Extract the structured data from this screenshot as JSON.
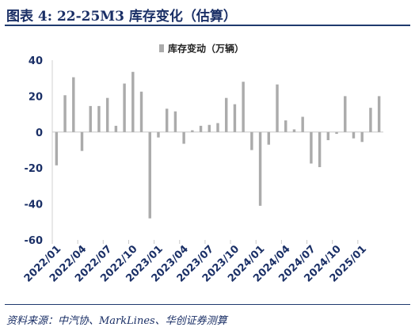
{
  "header": {
    "title": "图表 4:  22-25M3 库存变化（估算）"
  },
  "footer": {
    "source": "资料来源：中汽协、MarkLines、华创证券测算"
  },
  "colors": {
    "bar": "#ababab",
    "axis_text": "#1a2f66",
    "title_text": "#1a2f66"
  },
  "chart_data": {
    "type": "bar",
    "legend": {
      "label": "库存变动（万辆）",
      "position": "top-center"
    },
    "ylim": [
      -60,
      40
    ],
    "yticks": [
      40,
      20,
      0,
      -20,
      -40,
      -60
    ],
    "grid": false,
    "x_tick_labels": [
      "2022/01",
      "2022/04",
      "2022/07",
      "2022/10",
      "2023/01",
      "2023/04",
      "2023/07",
      "2023/10",
      "2024/01",
      "2024/04",
      "2024/07",
      "2024/10",
      "2025/01"
    ],
    "categories": [
      "2022/01",
      "2022/02",
      "2022/03",
      "2022/04",
      "2022/05",
      "2022/06",
      "2022/07",
      "2022/08",
      "2022/09",
      "2022/10",
      "2022/11",
      "2022/12",
      "2023/01",
      "2023/02",
      "2023/03",
      "2023/04",
      "2023/05",
      "2023/06",
      "2023/07",
      "2023/08",
      "2023/09",
      "2023/10",
      "2023/11",
      "2023/12",
      "2024/01",
      "2024/02",
      "2024/03",
      "2024/04",
      "2024/05",
      "2024/06",
      "2024/07",
      "2024/08",
      "2024/09",
      "2024/10",
      "2024/11",
      "2024/12",
      "2025/01",
      "2025/02",
      "2025/03"
    ],
    "values": [
      -18.5,
      20.5,
      30.5,
      -10.5,
      14.5,
      14.5,
      19,
      3.5,
      27,
      33.5,
      22.5,
      -48,
      -3,
      13,
      11.5,
      -6.5,
      1,
      3.5,
      4,
      5,
      19,
      15.5,
      28,
      -10,
      -41,
      -7,
      26.5,
      6.5,
      1.5,
      8.5,
      -17.5,
      -19.5,
      -4.5,
      -1,
      20,
      -3.5,
      -5.5,
      13.5,
      20
    ]
  }
}
